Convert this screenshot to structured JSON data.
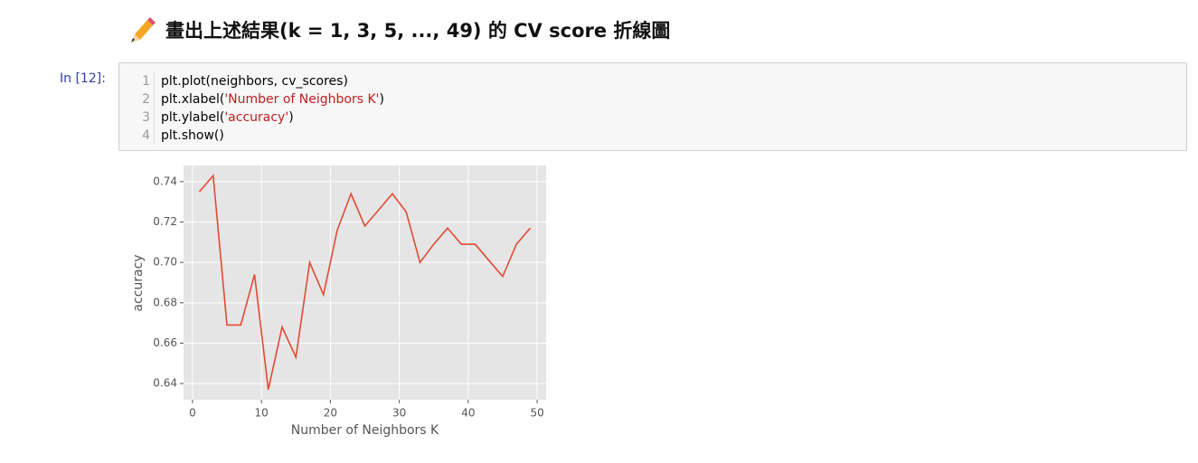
{
  "heading": "畫出上述結果(k = 1, 3, 5, ..., 49) 的 CV score 折線圖",
  "cell": {
    "prompt": "In [12]:",
    "line_numbers": [
      1,
      2,
      3,
      4
    ],
    "code_lines": [
      [
        "plt.plot(neighbors, cv_scores)"
      ],
      [
        "plt.xlabel(",
        "'Number of Neighbors K'",
        ")"
      ],
      [
        "plt.ylabel(",
        "'accuracy'",
        ")"
      ],
      [
        "plt.show()"
      ]
    ]
  },
  "chart_data": {
    "type": "line",
    "xlabel": "Number of Neighbors K",
    "ylabel": "accuracy",
    "x": [
      1,
      3,
      5,
      7,
      9,
      11,
      13,
      15,
      17,
      19,
      21,
      23,
      25,
      27,
      29,
      31,
      33,
      35,
      37,
      39,
      41,
      43,
      45,
      47,
      49
    ],
    "series": [
      {
        "color": "#e24a33",
        "values": [
          0.735,
          0.743,
          0.669,
          0.669,
          0.694,
          0.637,
          0.668,
          0.653,
          0.7,
          0.684,
          0.716,
          0.734,
          0.718,
          0.726,
          0.734,
          0.725,
          0.7,
          0.709,
          0.717,
          0.709,
          0.709,
          0.701,
          0.693,
          0.709,
          0.717
        ]
      }
    ],
    "xlim": [
      -1.3,
      51.3
    ],
    "ylim": [
      0.632,
      0.748
    ],
    "xticks": [
      0,
      10,
      20,
      30,
      40,
      50
    ],
    "yticks": [
      0.64,
      0.66,
      0.68,
      {
        "value": 0.7,
        "label": "0.70"
      },
      0.72,
      0.74
    ],
    "grid": true
  }
}
